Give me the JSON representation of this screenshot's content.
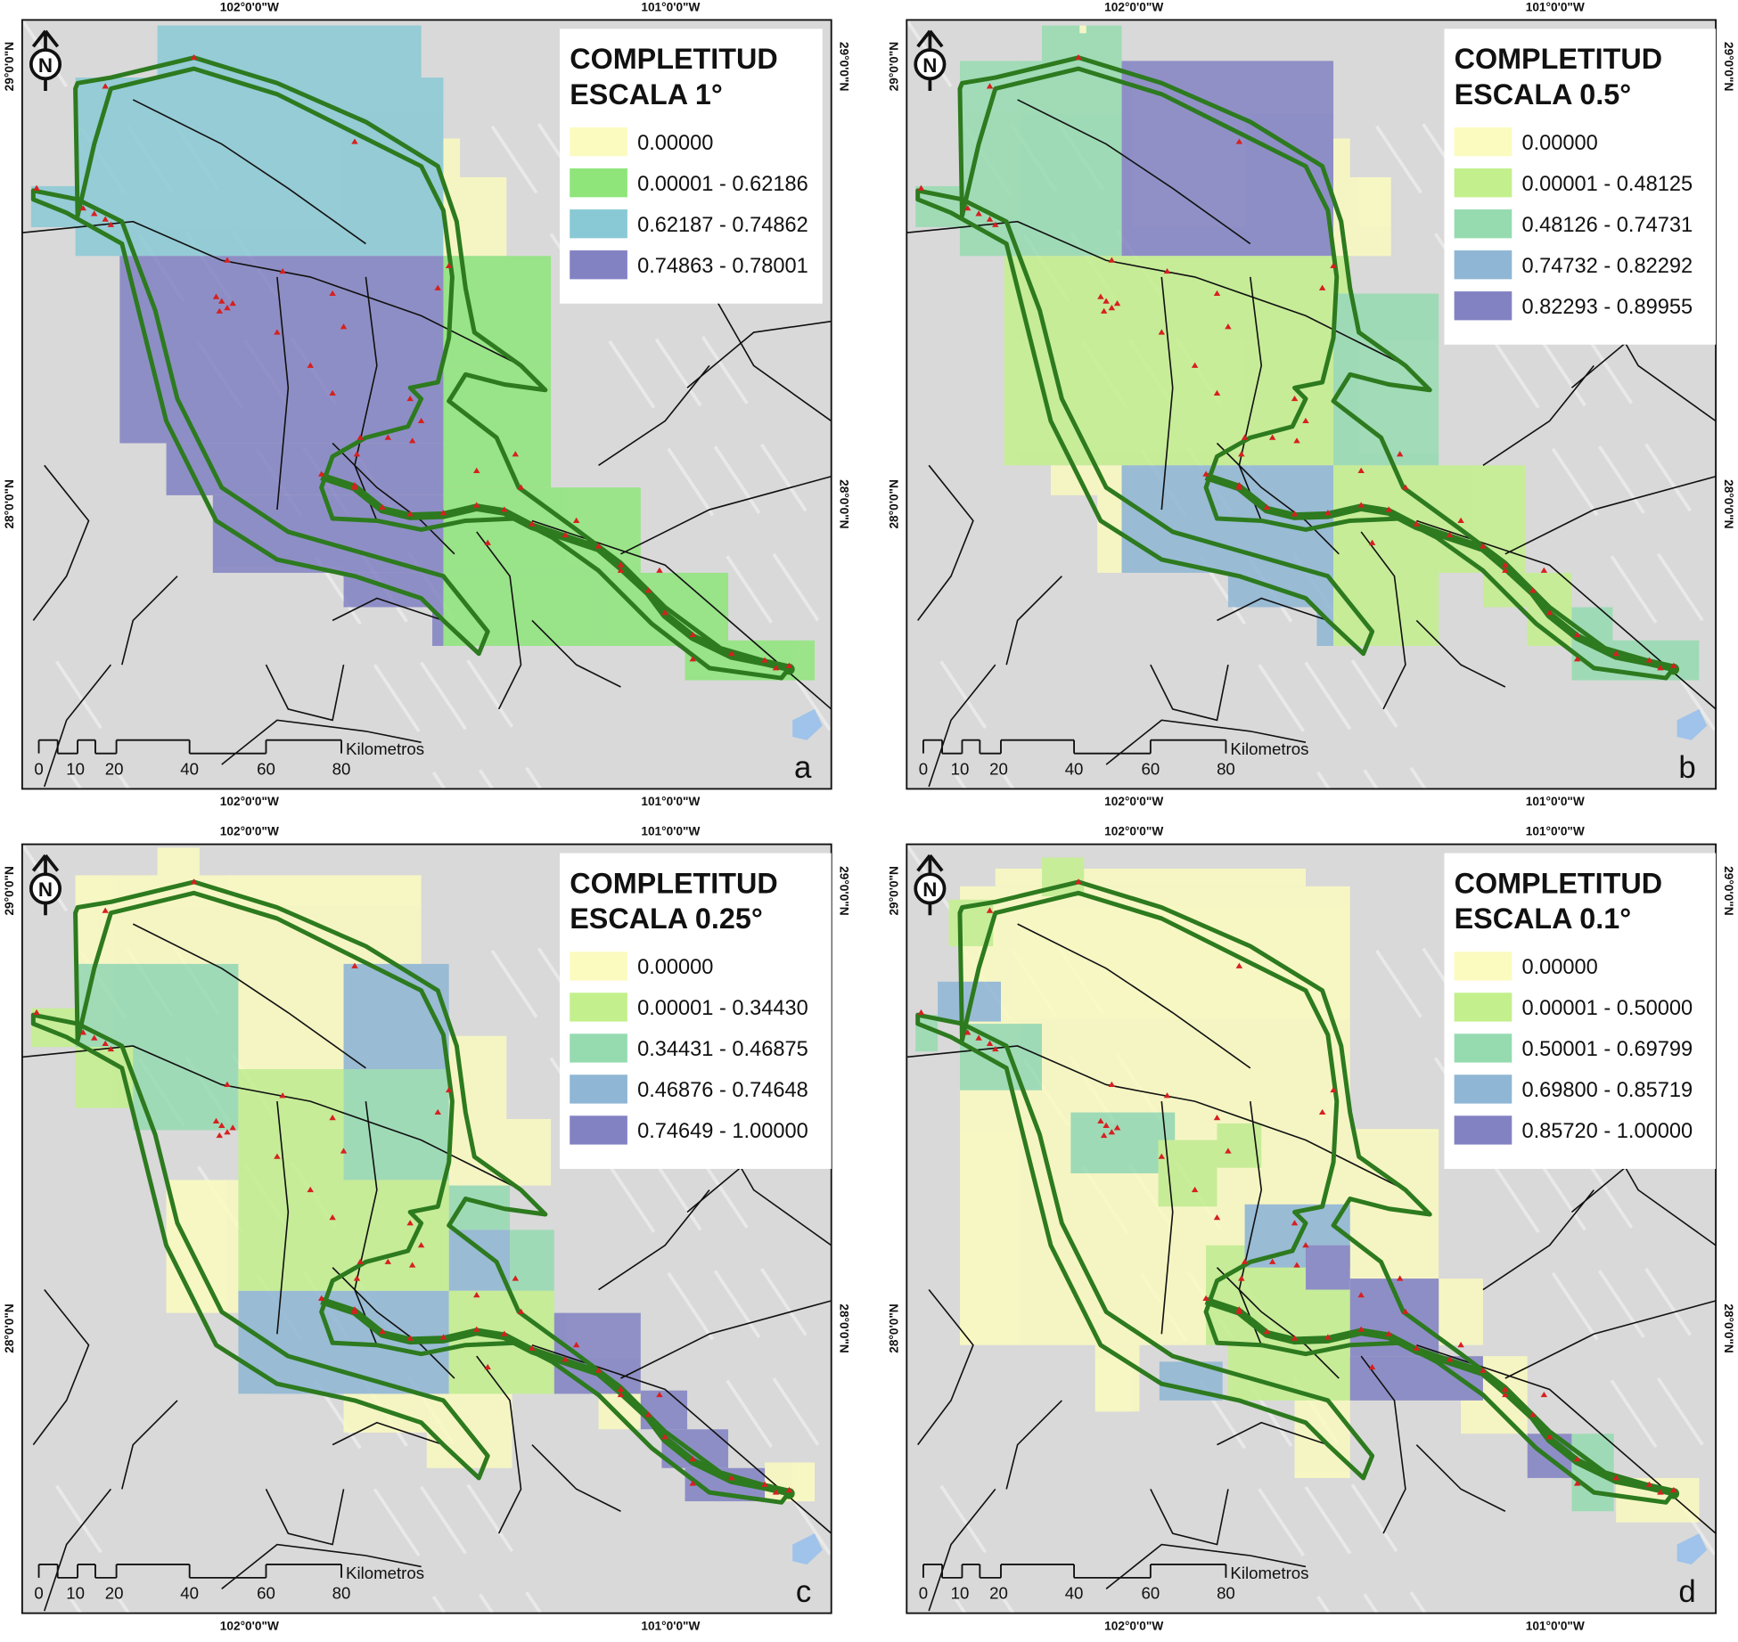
{
  "coordinates": {
    "lon_west": "102°0'0\"W",
    "lon_east": "101°0'0\"W",
    "lat_north": "29°0'0\"N",
    "lat_south": "28°0'0\"N"
  },
  "scale_bar": {
    "labels": [
      "0",
      "10",
      "20",
      "40",
      "60",
      "80"
    ],
    "unit": "Kilometros"
  },
  "north_arrow": {
    "label": "N"
  },
  "colors": {
    "yellow": "#fbfbc0",
    "green_a": "#8fe57a",
    "teal_a": "#89c9d5",
    "purple": "#8282c3",
    "lightgreen": "#c3f08c",
    "tealgreen": "#96dbb0",
    "blue": "#8fb6d4",
    "outline": "#2d7a1f",
    "sites": "#d62020"
  },
  "panels": [
    {
      "letter": "a",
      "legend": {
        "title_line1": "COMPLETITUD",
        "title_line2": "ESCALA 1°",
        "items": [
          {
            "label": "0.00000",
            "color": "#fbfbc0"
          },
          {
            "label": "0.00001 - 0.62186",
            "color": "#8fe57a"
          },
          {
            "label": "0.62187 - 0.74862",
            "color": "#89c9d5"
          },
          {
            "label": "0.74863 - 0.78001",
            "color": "#8282c3"
          }
        ]
      }
    },
    {
      "letter": "b",
      "legend": {
        "title_line1": "COMPLETITUD",
        "title_line2": "ESCALA 0.5°",
        "items": [
          {
            "label": "0.00000",
            "color": "#fbfbc0"
          },
          {
            "label": "0.00001 - 0.48125",
            "color": "#c3f08c"
          },
          {
            "label": "0.48126 - 0.74731",
            "color": "#96dbb0"
          },
          {
            "label": "0.74732 - 0.82292",
            "color": "#8fb6d4"
          },
          {
            "label": "0.82293 - 0.89955",
            "color": "#8282c3"
          }
        ]
      }
    },
    {
      "letter": "c",
      "legend": {
        "title_line1": "COMPLETITUD",
        "title_line2": "ESCALA 0.25°",
        "items": [
          {
            "label": "0.00000",
            "color": "#fbfbc0"
          },
          {
            "label": "0.00001 - 0.34430",
            "color": "#c3f08c"
          },
          {
            "label": "0.34431 - 0.46875",
            "color": "#96dbb0"
          },
          {
            "label": "0.46876 - 0.74648",
            "color": "#8fb6d4"
          },
          {
            "label": "0.74649 - 1.00000",
            "color": "#8282c3"
          }
        ]
      }
    },
    {
      "letter": "d",
      "legend": {
        "title_line1": "COMPLETITUD",
        "title_line2": "ESCALA 0.1°",
        "items": [
          {
            "label": "0.00000",
            "color": "#fbfbc0"
          },
          {
            "label": "0.00001 - 0.50000",
            "color": "#c3f08c"
          },
          {
            "label": "0.50001 - 0.69799",
            "color": "#96dbb0"
          },
          {
            "label": "0.69800 - 0.85719",
            "color": "#8fb6d4"
          },
          {
            "label": "0.85720 - 1.00000",
            "color": "#8282c3"
          }
        ]
      }
    }
  ]
}
